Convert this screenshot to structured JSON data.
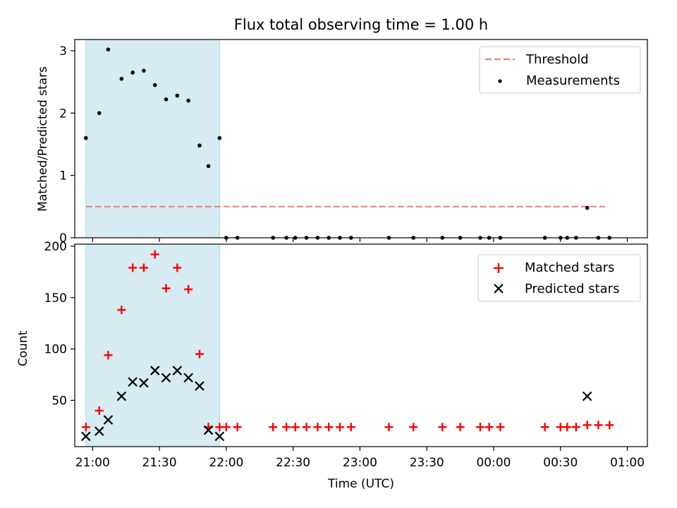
{
  "chart_data": [
    {
      "type": "scatter",
      "title": "Flux total observing time = 1.00 h",
      "xlabel": "",
      "ylabel": "Matched/Predicted stars",
      "xlim": [
        "20:52",
        "01:09"
      ],
      "ylim": [
        0,
        3.18
      ],
      "yticks": [
        0,
        1,
        2,
        3
      ],
      "shaded_span": [
        "20:57",
        "21:57"
      ],
      "legend_position": "upper right",
      "threshold": {
        "name": "Threshold",
        "value": 0.5,
        "x_range": [
          "20:57",
          "00:50"
        ],
        "color": "#f08080"
      },
      "series": [
        {
          "name": "Measurements",
          "color": "#000000",
          "x": [
            "20:57",
            "21:03",
            "21:07",
            "21:13",
            "21:18",
            "21:23",
            "21:28",
            "21:33",
            "21:38",
            "21:43",
            "21:48",
            "21:52",
            "21:57",
            "22:00",
            "22:05",
            "22:21",
            "22:27",
            "22:31",
            "22:36",
            "22:41",
            "22:46",
            "22:51",
            "22:56",
            "23:13",
            "23:24",
            "23:37",
            "23:45",
            "23:54",
            "23:58",
            "00:03",
            "00:23",
            "00:30",
            "00:33",
            "00:37",
            "00:42",
            "00:47",
            "00:52"
          ],
          "values": [
            1.6,
            2.0,
            3.02,
            2.55,
            2.65,
            2.68,
            2.45,
            2.22,
            2.28,
            2.2,
            1.48,
            1.15,
            1.6,
            0,
            0,
            0,
            0,
            0,
            0,
            0,
            0,
            0,
            0,
            0,
            0,
            0,
            0,
            0,
            0,
            0,
            0,
            0,
            0,
            0,
            0.48,
            0,
            0
          ]
        }
      ]
    },
    {
      "type": "scatter",
      "title": "",
      "xlabel": "Time (UTC)",
      "ylabel": "Count",
      "xlim": [
        "20:52",
        "01:09"
      ],
      "ylim": [
        5,
        202
      ],
      "yticks": [
        50,
        100,
        150,
        200
      ],
      "xticks": [
        "21:00",
        "21:30",
        "22:00",
        "22:30",
        "23:00",
        "23:30",
        "00:00",
        "00:30",
        "01:00"
      ],
      "shaded_span": [
        "20:57",
        "21:57"
      ],
      "legend_position": "upper right",
      "series": [
        {
          "name": "Matched stars",
          "marker": "plus",
          "color": "#ff0000",
          "x": [
            "20:57",
            "21:03",
            "21:07",
            "21:13",
            "21:18",
            "21:23",
            "21:28",
            "21:33",
            "21:38",
            "21:43",
            "21:48",
            "21:52",
            "21:57",
            "22:00",
            "22:05",
            "22:21",
            "22:27",
            "22:31",
            "22:36",
            "22:41",
            "22:46",
            "22:51",
            "22:56",
            "23:13",
            "23:24",
            "23:37",
            "23:45",
            "23:54",
            "23:58",
            "00:03",
            "00:23",
            "00:30",
            "00:33",
            "00:37",
            "00:42",
            "00:47",
            "00:52"
          ],
          "values": [
            24,
            40,
            94,
            138,
            179,
            179,
            192,
            159,
            179,
            158,
            95,
            24,
            24,
            24,
            24,
            24,
            24,
            24,
            24,
            24,
            24,
            24,
            24,
            24,
            24,
            24,
            24,
            24,
            24,
            24,
            24,
            24,
            24,
            24,
            26,
            26,
            26
          ]
        },
        {
          "name": "Predicted stars",
          "marker": "x",
          "color": "#000000",
          "x": [
            "20:57",
            "21:03",
            "21:07",
            "21:13",
            "21:18",
            "21:23",
            "21:28",
            "21:33",
            "21:38",
            "21:43",
            "21:48",
            "21:52",
            "21:57",
            "00:42"
          ],
          "values": [
            15,
            20,
            31,
            54,
            68,
            67,
            79,
            72,
            79,
            72,
            64,
            21,
            15,
            54
          ]
        }
      ]
    }
  ]
}
